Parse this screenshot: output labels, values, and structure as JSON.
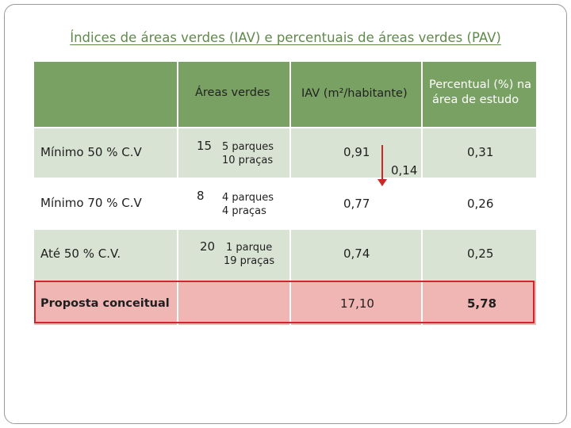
{
  "title": "Índices de áreas verdes (IAV) e percentuais de áreas verdes (PAV)",
  "headers": {
    "rowlabel": "",
    "areas": "Áreas verdes",
    "iav": "IAV (m²/habitante)",
    "pav_line1": "Percentual (%) na",
    "pav_line2": "área de estudo"
  },
  "rows": [
    {
      "label": "Mínimo 50 % C.V",
      "count": "15",
      "parks": "5 parques",
      "squares": "10 praças",
      "iav": "0,91",
      "pav": "0,31"
    },
    {
      "label": "Mínimo 70 % C.V",
      "count": "8",
      "parks": "4 parques",
      "squares": "4 praças",
      "iav": "0,77",
      "pav": "0,26"
    },
    {
      "label": "Até 50 % C.V.",
      "count": "20",
      "parks": "1 parque",
      "squares": "19 praças",
      "iav": "0,74",
      "pav": "0,25"
    },
    {
      "label": "Proposta conceitual",
      "count": "",
      "parks": "",
      "squares": "",
      "iav": "17,10",
      "pav": "5,78"
    }
  ],
  "annotation": {
    "difference": "0,14"
  },
  "colors": {
    "header": "#79a163",
    "light_row": "#d9e3d3",
    "highlight_fill": "#efb6b4",
    "highlight_border": "#d0262a",
    "title": "#5e8a4a"
  }
}
